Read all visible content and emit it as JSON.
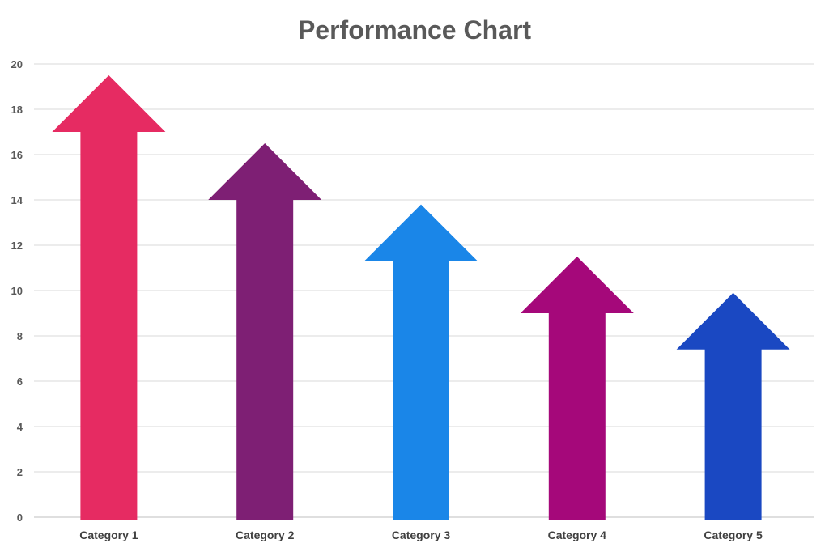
{
  "chart_data": {
    "type": "bar",
    "title": "Performance Chart",
    "xlabel": "",
    "ylabel": "",
    "categories": [
      "Category 1",
      "Category 2",
      "Category 3",
      "Category 4",
      "Category 5"
    ],
    "values": [
      19.5,
      16.5,
      13.8,
      11.5,
      9.9
    ],
    "ylim": [
      0,
      20
    ],
    "yticks": [
      "0",
      "2",
      "4",
      "6",
      "8",
      "10",
      "12",
      "14",
      "16",
      "18",
      "20"
    ],
    "grid": true,
    "bar_style": "arrow",
    "colors": [
      "#E62B62",
      "#7E1F74",
      "#1A86E8",
      "#A5087A",
      "#1A48C2"
    ]
  }
}
